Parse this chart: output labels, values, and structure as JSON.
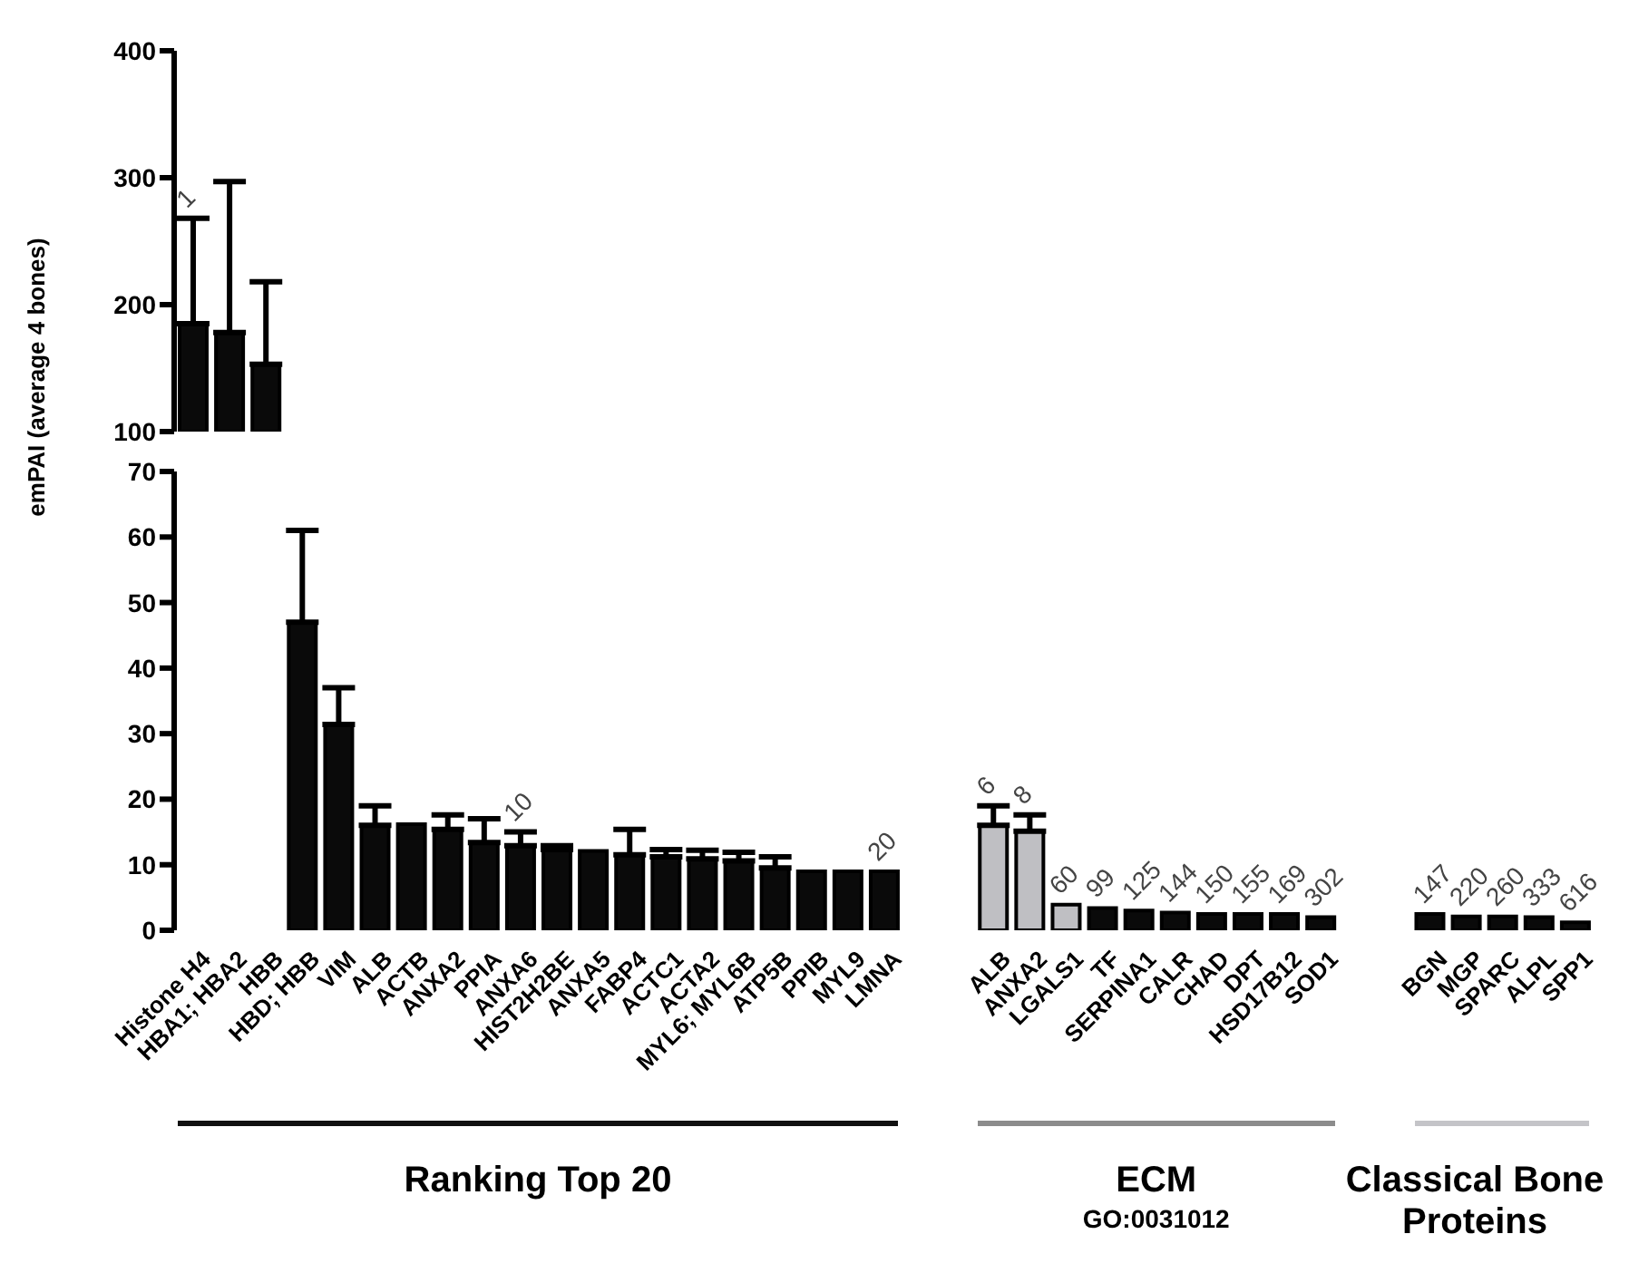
{
  "chart_data": [
    {
      "type": "bar",
      "tick_labels": "y",
      "ylim": [
        100,
        400
      ],
      "yticks": [
        100,
        200,
        300,
        400
      ],
      "categories": [
        "Histone H4",
        "HBA1; HBA2",
        "HBB",
        "HBD; HBB",
        "VIM",
        "ALB",
        "ACTB",
        "ANXA2",
        "PPIA",
        "ANXA6",
        "HIST2H2BE",
        "ANXA5",
        "FABP4",
        "ACTC1",
        "ACTA2",
        "MYL6; MYL6B",
        "ATP5B",
        "PPIB",
        "MYL9",
        "LMNA",
        null,
        null,
        "ALB",
        "ANXA2",
        "LGALS1",
        "TF",
        "SERPINA1",
        "CALR",
        "CHAD",
        "DPT",
        "HSD17B12",
        "SOD1",
        null,
        null,
        "BGN",
        "MGP",
        "SPARC",
        "ALPL",
        "SPP1"
      ],
      "values": [
        185,
        178,
        153,
        null,
        null,
        null,
        null,
        null,
        null,
        null,
        null,
        null,
        null,
        null,
        null,
        null,
        null,
        null,
        null,
        null,
        null,
        null,
        null,
        null,
        null,
        null,
        null,
        null,
        null,
        null,
        null,
        null,
        null,
        null,
        null,
        null,
        null,
        null,
        null
      ],
      "errors": [
        [
          185,
          268
        ],
        [
          178,
          297
        ],
        [
          153,
          218
        ],
        null,
        null,
        null,
        null,
        null,
        null,
        null,
        null,
        null,
        null,
        null,
        null,
        null,
        null,
        null,
        null,
        null,
        null,
        null,
        null,
        null,
        null,
        null,
        null,
        null,
        null,
        null,
        null,
        null,
        null,
        null,
        null,
        null,
        null,
        null,
        null
      ],
      "annotations": [
        {
          "text": "1",
          "x": "Histone H4",
          "y": 268
        }
      ],
      "colors": [
        "#0a0a0a",
        "#0a0a0a",
        "#0a0a0a",
        "#0a0a0a",
        "#0a0a0a",
        "#0a0a0a",
        "#0a0a0a",
        "#0a0a0a",
        "#0a0a0a",
        "#0a0a0a",
        "#0a0a0a",
        "#0a0a0a",
        "#0a0a0a",
        "#0a0a0a",
        "#0a0a0a",
        "#0a0a0a",
        "#0a0a0a",
        "#0a0a0a",
        "#0a0a0a",
        "#0a0a0a",
        "#0a0a0a",
        "#0a0a0a",
        "#0a0a0a",
        "#0a0a0a",
        "#0a0a0a",
        "#0a0a0a",
        "#0a0a0a",
        "#0a0a0a",
        "#0a0a0a",
        "#0a0a0a",
        "#0a0a0a",
        "#0a0a0a",
        "#0a0a0a",
        "#0a0a0a",
        "#0a0a0a",
        "#0a0a0a",
        "#0a0a0a",
        "#0a0a0a",
        "#0a0a0a"
      ]
    },
    {
      "type": "bar",
      "ylabel": "emPAI (average 4 bones)",
      "ylim": [
        0,
        70
      ],
      "yticks": [
        0,
        10,
        20,
        30,
        40,
        50,
        60,
        70
      ],
      "categories": [
        "Histone H4",
        "HBA1; HBA2",
        "HBB",
        "HBD; HBB",
        "VIM",
        "ALB",
        "ACTB",
        "ANXA2",
        "PPIA",
        "ANXA6",
        "HIST2H2BE",
        "ANXA5",
        "FABP4",
        "ACTC1",
        "ACTA2",
        "MYL6; MYL6B",
        "ATP5B",
        "PPIB",
        "MYL9",
        "LMNA",
        null,
        null,
        "ALB",
        "ANXA2",
        "LGALS1",
        "TF",
        "SERPINA1",
        "CALR",
        "CHAD",
        "DPT",
        "HSD17B12",
        "SOD1",
        null,
        null,
        "BGN",
        "MGP",
        "SPARC",
        "ALPL",
        "SPP1"
      ],
      "values": [
        null,
        null,
        null,
        47,
        31.4,
        16,
        16.2,
        15.4,
        13.4,
        12.9,
        12.3,
        12.1,
        11.5,
        11.2,
        10.9,
        10.6,
        9.5,
        9,
        9,
        9,
        null,
        null,
        16,
        15.1,
        3.9,
        3.4,
        3,
        2.7,
        2.5,
        2.5,
        2.5,
        2,
        null,
        null,
        2.5,
        2.1,
        2.1,
        2,
        1.2
      ],
      "errors": [
        null,
        null,
        null,
        [
          47,
          61
        ],
        [
          31.4,
          37
        ],
        [
          16,
          19
        ],
        null,
        [
          15.4,
          17.6
        ],
        [
          13.4,
          17
        ],
        [
          12.9,
          15
        ],
        [
          12.3,
          12.9
        ],
        null,
        [
          11.5,
          15.4
        ],
        [
          11.2,
          12.3
        ],
        [
          10.9,
          12.2
        ],
        [
          10.6,
          11.9
        ],
        [
          9.5,
          11.2
        ],
        null,
        null,
        null,
        null,
        null,
        [
          16,
          19
        ],
        [
          15.1,
          17.6
        ],
        null,
        null,
        null,
        null,
        null,
        null,
        null,
        null,
        null,
        null,
        null,
        null,
        null,
        null,
        null
      ],
      "colors": [
        "#0a0a0a",
        "#0a0a0a",
        "#0a0a0a",
        "#0a0a0a",
        "#0a0a0a",
        "#0a0a0a",
        "#0a0a0a",
        "#0a0a0a",
        "#0a0a0a",
        "#0a0a0a",
        "#0a0a0a",
        "#0a0a0a",
        "#0a0a0a",
        "#0a0a0a",
        "#0a0a0a",
        "#0a0a0a",
        "#0a0a0a",
        "#0a0a0a",
        "#0a0a0a",
        "#0a0a0a",
        "#0a0a0a",
        "#0a0a0a",
        "#bfbfc3",
        "#bfbfc3",
        "#bfbfc3",
        "#0a0a0a",
        "#0a0a0a",
        "#0a0a0a",
        "#0a0a0a",
        "#0a0a0a",
        "#0a0a0a",
        "#0a0a0a",
        "#0a0a0a",
        "#0a0a0a",
        "#0a0a0a",
        "#0a0a0a",
        "#0a0a0a",
        "#0a0a0a",
        "#0a0a0a"
      ],
      "annotations": [
        "Ranking Top 20",
        "ECM",
        "GO:0031012",
        "Classical Bone Proteins",
        {
          "text": "10",
          "x": "ANXA6",
          "y": 12.9
        },
        {
          "text": "20",
          "x": "LMNA",
          "y": 9
        },
        "6",
        "8",
        {
          "text": "60",
          "x": "LGALS1",
          "y": 3.9
        },
        {
          "text": "99",
          "x": "TF",
          "y": 3.4
        },
        {
          "text": "125",
          "x": "SERPINA1",
          "y": 3
        },
        {
          "text": "144",
          "x": "CALR",
          "y": 2.7
        },
        {
          "text": "150",
          "x": "CHAD",
          "y": 2.5
        },
        {
          "text": "155",
          "x": "DPT",
          "y": 2.5
        },
        {
          "text": "169",
          "x": "HSD17B12",
          "y": 2.5
        },
        {
          "text": "302",
          "x": "SOD1",
          "y": 2
        },
        {
          "text": "147",
          "x": "BGN",
          "y": 2.5
        },
        {
          "text": "220",
          "x": "MGP",
          "y": 2.1
        },
        {
          "text": "260",
          "x": "SPARC",
          "y": 2.1
        },
        {
          "text": "333",
          "x": "ALPL",
          "y": 2
        },
        {
          "text": "616",
          "x": "SPP1",
          "y": 1.2
        }
      ]
    }
  ]
}
